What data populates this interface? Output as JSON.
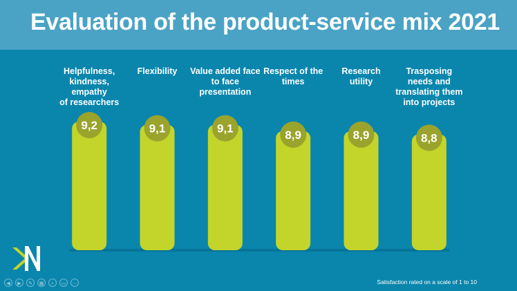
{
  "slide": {
    "title": "Evaluation of the product-service mix 2021",
    "footnote": "Satisfaction rated on a scale of 1 to 10"
  },
  "colors": {
    "background": "#0a86ad",
    "header": "#4aa3c5",
    "bar": "#c3d42a",
    "badge": "#9aa32c"
  },
  "icons": {
    "logo": "n-logo-icon",
    "nav": [
      "prev-icon",
      "next-icon",
      "pen-icon",
      "slides-icon",
      "zoom-icon",
      "subtitles-icon",
      "more-icon"
    ]
  },
  "chart_data": {
    "type": "bar",
    "categories": [
      "Helpfulness, kindness, empathy of researchers",
      "Flexibility",
      "Value added face to face presentation",
      "Respect of the times",
      "Research utility",
      "Trasposing needs and translating them into projects"
    ],
    "category_lines": [
      [
        "Helpfulness,",
        "kindness, empathy",
        "of researchers"
      ],
      [
        "Flexibility"
      ],
      [
        "Value added face",
        "to face",
        "presentation"
      ],
      [
        "Respect of the",
        "times"
      ],
      [
        "Research",
        "utility"
      ],
      [
        "Trasposing",
        "needs and",
        "translating them",
        "into projects"
      ]
    ],
    "values": [
      9.2,
      9.1,
      9.1,
      8.9,
      8.9,
      8.8
    ],
    "data_labels": [
      "9,2",
      "9,1",
      "9,1",
      "8,9",
      "8,9",
      "8,8"
    ],
    "ylim": [
      0,
      10
    ],
    "grid": false,
    "legend": "none"
  }
}
